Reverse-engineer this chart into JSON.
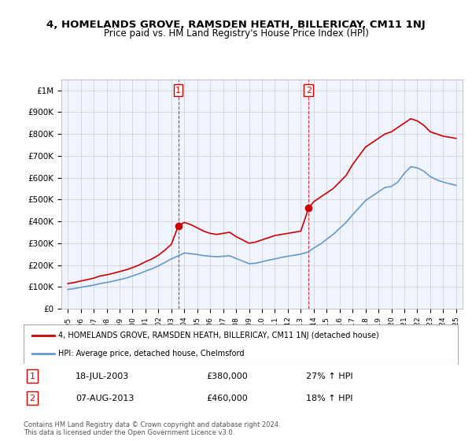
{
  "title": "4, HOMELANDS GROVE, RAMSDEN HEATH, BILLERICAY, CM11 1NJ",
  "subtitle": "Price paid vs. HM Land Registry's House Price Index (HPI)",
  "legend_line1": "4, HOMELANDS GROVE, RAMSDEN HEATH, BILLERICAY, CM11 1NJ (detached house)",
  "legend_line2": "HPI: Average price, detached house, Chelmsford",
  "transaction1_label": "1",
  "transaction1_date": "18-JUL-2003",
  "transaction1_price": "£380,000",
  "transaction1_hpi": "27% ↑ HPI",
  "transaction2_label": "2",
  "transaction2_date": "07-AUG-2013",
  "transaction2_price": "£460,000",
  "transaction2_hpi": "18% ↑ HPI",
  "footer": "Contains HM Land Registry data © Crown copyright and database right 2024.\nThis data is licensed under the Open Government Licence v3.0.",
  "red_line_color": "#cc0000",
  "blue_line_color": "#6699cc",
  "vline_color": "#cc0000",
  "grid_color": "#cccccc",
  "background_color": "#ffffff",
  "plot_bg_color": "#f0f4ff",
  "ylim": [
    0,
    1050000
  ],
  "yticks": [
    0,
    100000,
    200000,
    300000,
    400000,
    500000,
    600000,
    700000,
    800000,
    900000,
    1000000
  ],
  "ytick_labels": [
    "£0",
    "£100K",
    "£200K",
    "£300K",
    "£400K",
    "£500K",
    "£600K",
    "£700K",
    "£800K",
    "£900K",
    "£1M"
  ],
  "vline1_x": 2003.54,
  "vline2_x": 2013.6,
  "marker1_x": 2003.54,
  "marker1_y": 380000,
  "marker2_x": 2013.6,
  "marker2_y": 460000,
  "xlim": [
    1994.5,
    2025.5
  ],
  "xticks": [
    1995,
    1996,
    1997,
    1998,
    1999,
    2000,
    2001,
    2002,
    2003,
    2004,
    2005,
    2006,
    2007,
    2008,
    2009,
    2010,
    2011,
    2012,
    2013,
    2014,
    2015,
    2016,
    2017,
    2018,
    2019,
    2020,
    2021,
    2022,
    2023,
    2024,
    2025
  ],
  "red_x": [
    1995,
    1995.5,
    1996,
    1996.5,
    1997,
    1997.5,
    1998,
    1998.5,
    1999,
    1999.5,
    2000,
    2000.5,
    2001,
    2001.5,
    2002,
    2002.5,
    2003,
    2003.54,
    2004,
    2004.5,
    2005,
    2005.5,
    2006,
    2006.5,
    2007,
    2007.5,
    2008,
    2008.5,
    2009,
    2009.5,
    2010,
    2010.5,
    2011,
    2011.5,
    2012,
    2012.5,
    2013,
    2013.6,
    2014,
    2014.5,
    2015,
    2015.5,
    2016,
    2016.5,
    2017,
    2017.5,
    2018,
    2018.5,
    2019,
    2019.5,
    2020,
    2020.5,
    2021,
    2021.5,
    2022,
    2022.5,
    2023,
    2023.5,
    2024,
    2024.5,
    2025
  ],
  "red_y": [
    115000,
    120000,
    127000,
    133000,
    140000,
    150000,
    155000,
    162000,
    170000,
    178000,
    188000,
    200000,
    215000,
    228000,
    245000,
    268000,
    295000,
    380000,
    395000,
    385000,
    370000,
    355000,
    345000,
    340000,
    345000,
    350000,
    330000,
    315000,
    300000,
    305000,
    315000,
    325000,
    335000,
    340000,
    345000,
    350000,
    355000,
    460000,
    490000,
    510000,
    530000,
    550000,
    580000,
    610000,
    660000,
    700000,
    740000,
    760000,
    780000,
    800000,
    810000,
    830000,
    850000,
    870000,
    860000,
    840000,
    810000,
    800000,
    790000,
    785000,
    780000
  ],
  "blue_x": [
    1995,
    1995.5,
    1996,
    1996.5,
    1997,
    1997.5,
    1998,
    1998.5,
    1999,
    1999.5,
    2000,
    2000.5,
    2001,
    2001.5,
    2002,
    2002.5,
    2003,
    2003.54,
    2004,
    2004.5,
    2005,
    2005.5,
    2006,
    2006.5,
    2007,
    2007.5,
    2008,
    2008.5,
    2009,
    2009.5,
    2010,
    2010.5,
    2011,
    2011.5,
    2012,
    2012.5,
    2013,
    2013.6,
    2014,
    2014.5,
    2015,
    2015.5,
    2016,
    2016.5,
    2017,
    2017.5,
    2018,
    2018.5,
    2019,
    2019.5,
    2020,
    2020.5,
    2021,
    2021.5,
    2022,
    2022.5,
    2023,
    2023.5,
    2024,
    2024.5,
    2025
  ],
  "blue_y": [
    88000,
    92000,
    98000,
    103000,
    108000,
    115000,
    120000,
    126000,
    133000,
    140000,
    150000,
    160000,
    172000,
    183000,
    196000,
    212000,
    228000,
    242000,
    255000,
    252000,
    248000,
    243000,
    240000,
    238000,
    240000,
    242000,
    230000,
    218000,
    206000,
    208000,
    215000,
    222000,
    228000,
    235000,
    240000,
    245000,
    250000,
    260000,
    278000,
    295000,
    318000,
    340000,
    368000,
    395000,
    430000,
    462000,
    495000,
    515000,
    535000,
    555000,
    560000,
    580000,
    620000,
    650000,
    645000,
    630000,
    605000,
    590000,
    580000,
    572000,
    565000
  ]
}
